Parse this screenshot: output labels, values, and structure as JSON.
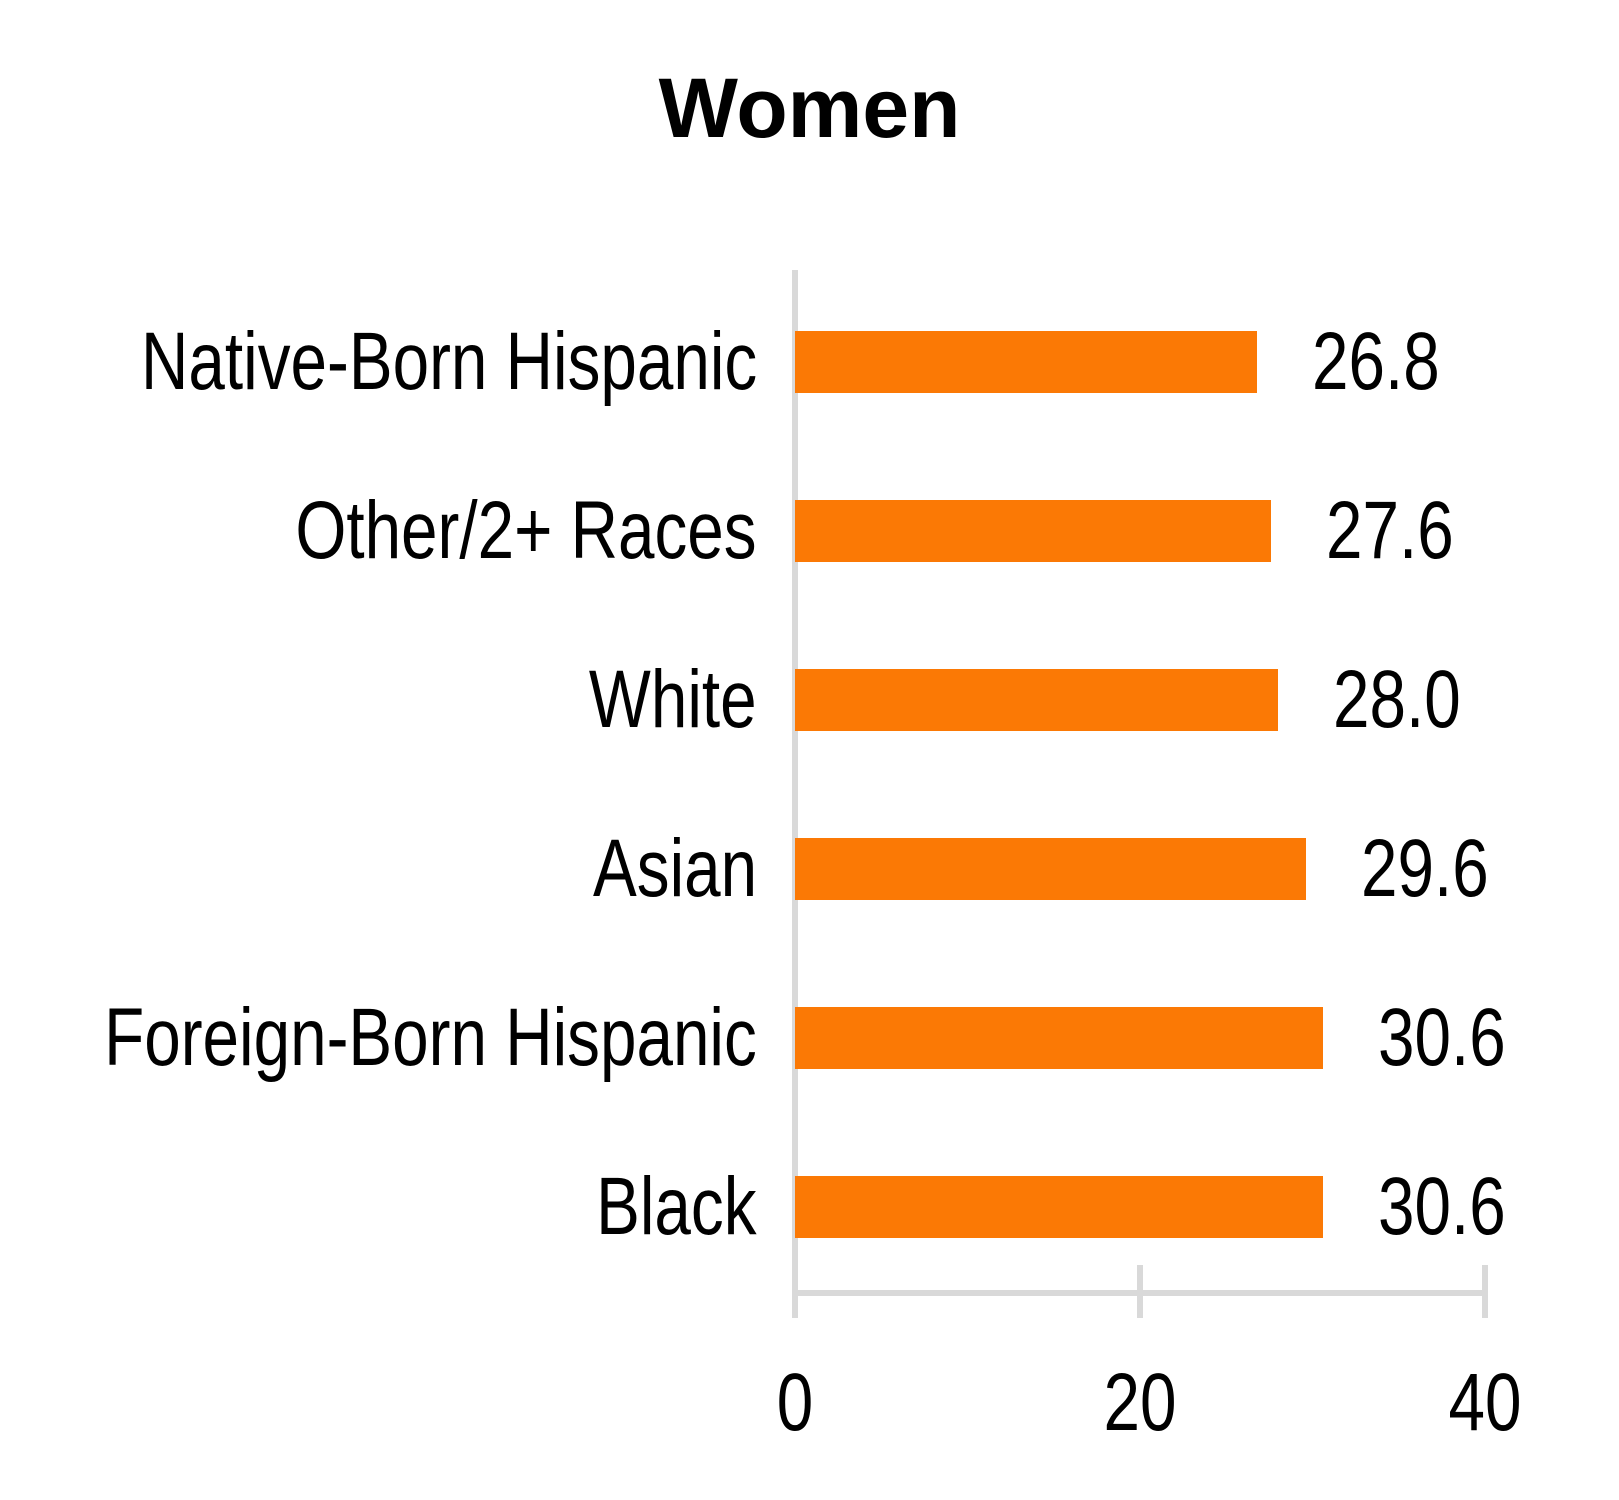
{
  "chart_data": {
    "type": "bar",
    "orientation": "horizontal",
    "title": "Women",
    "categories": [
      "Native-Born Hispanic",
      "Other/2+ Races",
      "White",
      "Asian",
      "Foreign-Born Hispanic",
      "Black"
    ],
    "values": [
      26.8,
      27.6,
      28.0,
      29.6,
      30.6,
      30.6
    ],
    "value_labels": [
      "26.8",
      "27.6",
      "28.0",
      "29.6",
      "30.6",
      "30.6"
    ],
    "xlabel": "",
    "ylabel": "",
    "xlim": [
      0,
      40
    ],
    "x_ticks": [
      0,
      20,
      40
    ],
    "x_tick_labels": [
      "0",
      "20",
      "40"
    ],
    "grid": false,
    "legend": false,
    "bar_color": "#FB7905",
    "axis_color": "#D9D9D9",
    "text_color": "#000000"
  }
}
